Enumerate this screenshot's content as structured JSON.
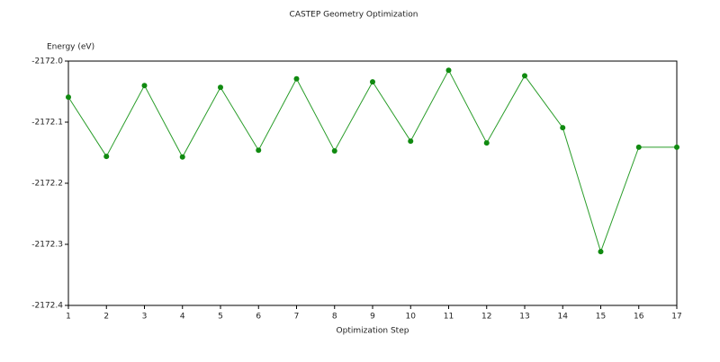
{
  "chart_data": {
    "type": "line",
    "title": "CASTEP Geometry Optimization",
    "x_label": "Optimization Step",
    "y_label": "Energy (eV)",
    "x": [
      1,
      2,
      3,
      4,
      5,
      6,
      7,
      8,
      9,
      10,
      11,
      12,
      13,
      14,
      15,
      16,
      17
    ],
    "series": [
      {
        "name": "Energy",
        "color": "#2a9d2a",
        "values": [
          -2172.059,
          -2172.156,
          -2172.04,
          -2172.157,
          -2172.043,
          -2172.146,
          -2172.029,
          -2172.147,
          -2172.034,
          -2172.131,
          -2172.015,
          -2172.134,
          -2172.024,
          -2172.109,
          -2172.312,
          -2172.141,
          -2172.141
        ]
      }
    ],
    "xlim": [
      1,
      17
    ],
    "xticks": [
      1,
      2,
      3,
      4,
      5,
      6,
      7,
      8,
      9,
      10,
      11,
      12,
      13,
      14,
      15,
      16,
      17
    ],
    "ylim": [
      -2172.4,
      -2172.0
    ],
    "yticks": [
      {
        "value": -2172.0,
        "label": "-2172.0"
      },
      -2172.1,
      -2172.2,
      -2172.3,
      -2172.4
    ],
    "grid": false
  }
}
